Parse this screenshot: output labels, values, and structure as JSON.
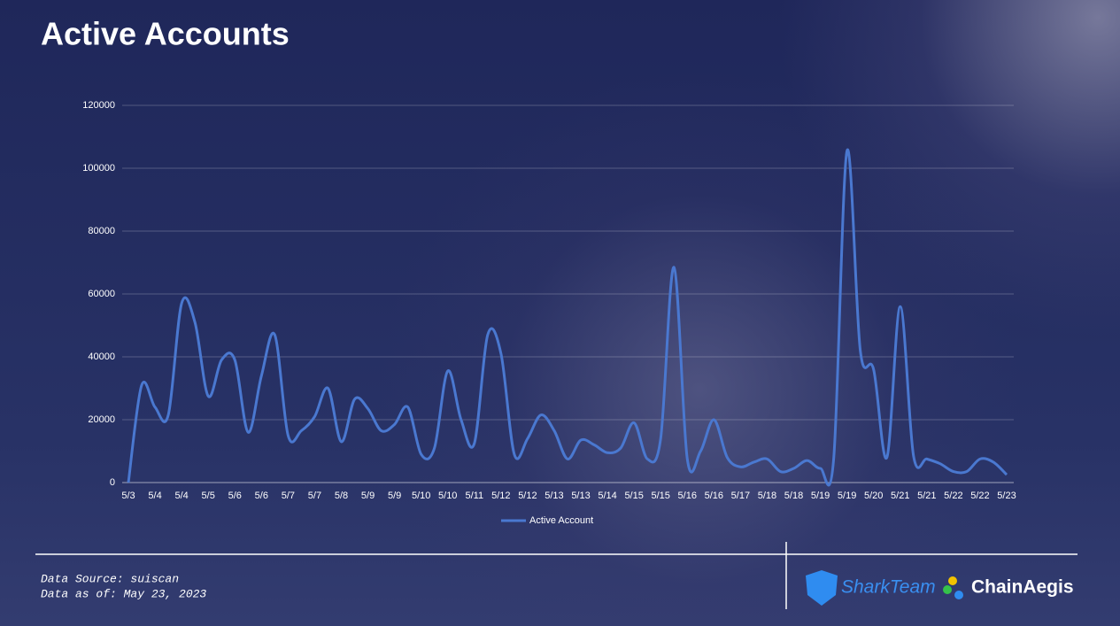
{
  "chart_data": {
    "type": "line",
    "title": "Active Accounts",
    "categories": [
      "5/3",
      null,
      "5/4",
      null,
      "5/4",
      null,
      "5/5",
      null,
      "5/6",
      null,
      "5/6",
      null,
      "5/7",
      null,
      "5/7",
      null,
      "5/8",
      null,
      "5/9",
      null,
      "5/9",
      null,
      "5/10",
      null,
      "5/10",
      null,
      "5/11",
      null,
      "5/12",
      null,
      "5/12",
      null,
      "5/13",
      null,
      "5/13",
      null,
      "5/14",
      null,
      "5/15",
      null,
      "5/15",
      null,
      "5/16",
      null,
      "5/16",
      null,
      "5/17",
      null,
      "5/18",
      null,
      "5/18",
      null,
      "5/19",
      null,
      "5/19",
      null,
      "5/20",
      null,
      "5/21",
      null,
      "5/21",
      null,
      "5/22",
      null,
      "5/22",
      null,
      "5/23"
    ],
    "series": [
      {
        "name": "Active Account",
        "color": "#4a78d0",
        "values": [
          0,
          31000,
          24000,
          21500,
          57000,
          51000,
          27500,
          39000,
          39000,
          16000,
          34000,
          47000,
          15000,
          16500,
          21000,
          30000,
          13000,
          26500,
          23500,
          16500,
          18500,
          24000,
          9000,
          11000,
          35500,
          20000,
          12500,
          47000,
          41000,
          9000,
          14000,
          21500,
          16500,
          7500,
          13500,
          12000,
          9500,
          11000,
          19000,
          7500,
          14000,
          68500,
          7500,
          10000,
          20000,
          8000,
          5000,
          6500,
          7500,
          3500,
          4500,
          7000,
          4500,
          7500,
          105500,
          42000,
          36000,
          8000,
          56000,
          8500,
          7500,
          6000,
          3500,
          3500,
          7500,
          6500,
          2500
        ]
      }
    ],
    "ylim": [
      0,
      120000
    ],
    "yticks": [
      0,
      20000,
      40000,
      60000,
      80000,
      100000,
      120000
    ],
    "grid": true,
    "legend": "bottom"
  },
  "footer": {
    "source": "Data Source: suiscan",
    "date": "Data as of: May 23, 2023",
    "logos": [
      "SharkTeam",
      "ChainAegis"
    ]
  }
}
